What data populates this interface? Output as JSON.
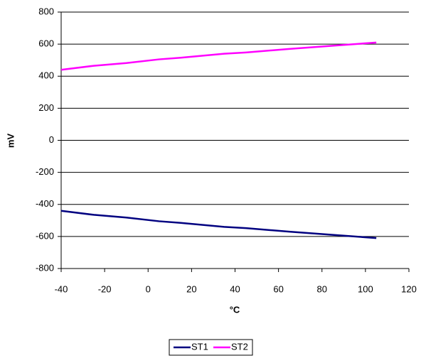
{
  "chart_data": {
    "type": "line",
    "x_label": "°C",
    "y_label": "mV",
    "x": [
      -40,
      -25,
      -10,
      5,
      15,
      35,
      45,
      65,
      85,
      105
    ],
    "series": [
      {
        "name": "ST1",
        "color": "#000080",
        "values": [
          -440,
          -465,
          -482,
          -505,
          -515,
          -540,
          -548,
          -570,
          -590,
          -610
        ]
      },
      {
        "name": "ST2",
        "color": "#ff00ff",
        "values": [
          440,
          465,
          482,
          505,
          515,
          540,
          548,
          570,
          590,
          610
        ]
      }
    ],
    "xlim": [
      -40,
      120
    ],
    "xticks": [
      -40,
      -20,
      0,
      20,
      40,
      60,
      80,
      100,
      120
    ],
    "ylim": [
      -800,
      800
    ],
    "yticks": [
      -800,
      -600,
      -400,
      -200,
      0,
      200,
      400,
      600,
      800
    ],
    "grid": true,
    "legend_position": "bottom"
  }
}
